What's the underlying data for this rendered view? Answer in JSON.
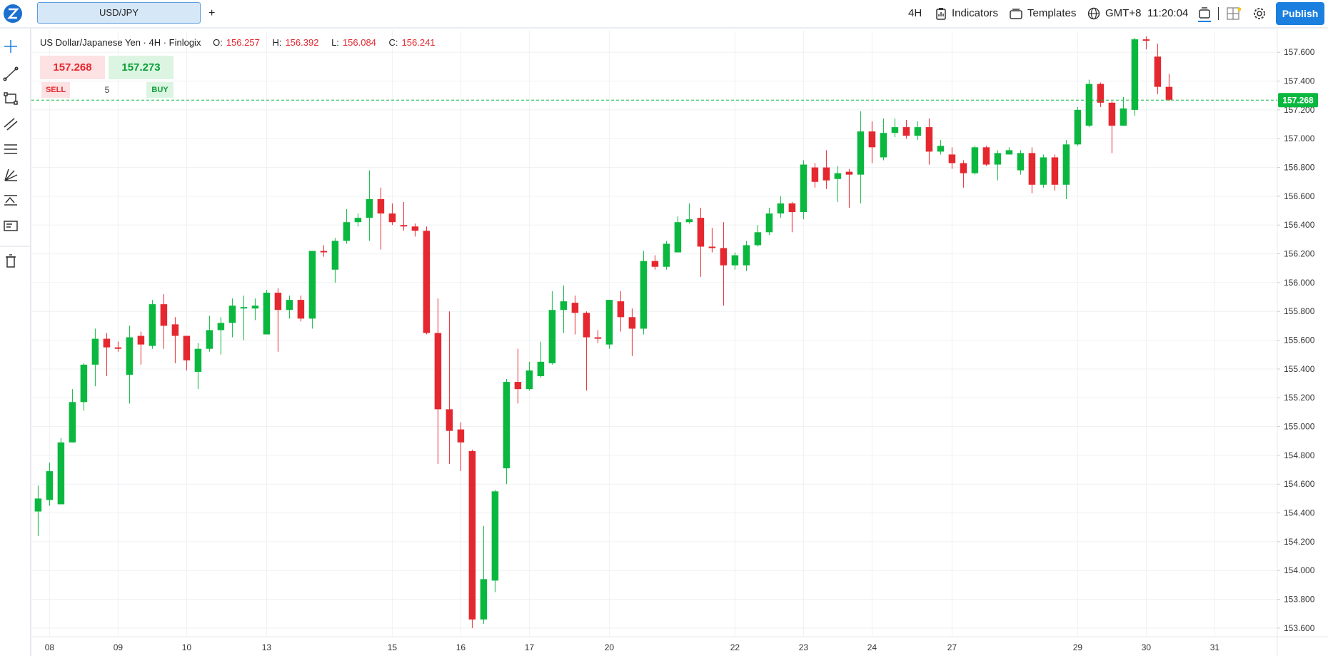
{
  "toolbar": {
    "tab": "USD/JPY",
    "add": "+",
    "interval": "4H",
    "indicators": "Indicators",
    "templates": "Templates",
    "timezone": "GMT+8",
    "clock": "11:20:04",
    "publish": "Publish"
  },
  "legend": {
    "name": "US Dollar/Japanese Yen · 4H · Finlogix",
    "o_label": "O:",
    "o": 156.257,
    "h_label": "H:",
    "h": 156.392,
    "l_label": "L:",
    "l": 156.084,
    "c_label": "C:",
    "c": 156.241
  },
  "trade": {
    "sell_price": 157.268,
    "buy_price": 157.273,
    "sell": "SELL",
    "quantity": 5,
    "buy": "BUY"
  },
  "chart_data": {
    "type": "candlestick",
    "categories": [
      null,
      "08",
      null,
      null,
      null,
      null,
      null,
      "09",
      null,
      null,
      null,
      null,
      null,
      "10",
      null,
      null,
      null,
      null,
      null,
      null,
      "13",
      null,
      null,
      null,
      null,
      null,
      null,
      null,
      null,
      null,
      null,
      "15",
      null,
      null,
      null,
      null,
      null,
      "16",
      null,
      null,
      null,
      null,
      null,
      "17",
      null,
      null,
      null,
      null,
      null,
      null,
      "20",
      null,
      null,
      null,
      null,
      null,
      null,
      null,
      null,
      null,
      null,
      "22",
      null,
      null,
      null,
      null,
      null,
      "23",
      null,
      null,
      null,
      null,
      null,
      "24",
      null,
      null,
      null,
      null,
      null,
      null,
      "27",
      null,
      null,
      null,
      null,
      null,
      null,
      null,
      null,
      null,
      null,
      "29",
      null,
      null,
      null,
      null,
      null,
      "30",
      null,
      null,
      null,
      null,
      null,
      "31"
    ],
    "open": [
      154.41,
      154.49,
      154.46,
      154.89,
      155.17,
      155.43,
      155.61,
      155.55,
      155.36,
      155.63,
      155.56,
      155.85,
      155.71,
      155.63,
      155.38,
      155.54,
      155.67,
      155.72,
      155.82,
      155.82,
      155.64,
      155.93,
      155.81,
      155.88,
      155.75,
      156.22,
      156.09,
      156.29,
      156.42,
      156.45,
      156.58,
      156.48,
      156.4,
      156.39,
      156.36,
      155.65,
      155.12,
      154.98,
      154.83,
      153.66,
      153.93,
      154.71,
      155.31,
      155.26,
      155.35,
      155.44,
      155.81,
      155.86,
      155.79,
      155.62,
      155.57,
      155.87,
      155.76,
      155.68,
      156.15,
      156.11,
      156.21,
      156.42,
      156.45,
      156.25,
      156.24,
      156.12,
      156.12,
      156.26,
      156.35,
      156.48,
      156.55,
      156.49,
      156.8,
      156.8,
      156.72,
      156.77,
      156.75,
      157.05,
      156.87,
      157.04,
      157.08,
      157.02,
      157.08,
      156.91,
      156.89,
      156.83,
      156.76,
      156.94,
      156.82,
      156.89,
      156.78,
      156.9,
      156.68,
      156.87,
      156.68,
      156.96,
      157.09,
      157.38,
      157.25,
      157.09,
      157.2,
      157.69,
      157.57,
      157.36,
      null,
      null,
      null,
      null
    ],
    "high": [
      154.59,
      154.75,
      154.92,
      155.26,
      155.44,
      155.68,
      155.65,
      155.59,
      155.7,
      155.66,
      155.88,
      155.92,
      155.76,
      155.63,
      155.58,
      155.77,
      155.76,
      155.89,
      155.91,
      155.89,
      155.95,
      155.96,
      155.91,
      155.91,
      156.22,
      156.26,
      156.31,
      156.51,
      156.48,
      156.78,
      156.66,
      156.55,
      156.56,
      156.41,
      156.39,
      155.89,
      155.8,
      155.03,
      154.84,
      154.31,
      154.56,
      155.33,
      155.54,
      155.45,
      155.59,
      155.94,
      155.98,
      155.91,
      155.8,
      155.67,
      155.88,
      155.94,
      155.82,
      156.22,
      156.19,
      156.29,
      156.46,
      156.55,
      156.52,
      156.38,
      156.42,
      156.21,
      156.29,
      156.4,
      156.52,
      156.6,
      156.56,
      156.85,
      156.83,
      156.92,
      156.81,
      156.79,
      157.19,
      157.12,
      157.14,
      157.14,
      157.13,
      157.12,
      157.14,
      156.99,
      156.94,
      156.85,
      156.95,
      156.95,
      156.92,
      156.94,
      156.92,
      156.94,
      156.89,
      156.89,
      156.99,
      157.22,
      157.41,
      157.39,
      157.26,
      157.29,
      157.7,
      157.71,
      157.66,
      157.45,
      null,
      null,
      null,
      null
    ],
    "low": [
      154.24,
      154.45,
      154.46,
      154.89,
      155.11,
      155.28,
      155.35,
      155.52,
      155.16,
      155.43,
      155.54,
      155.54,
      155.44,
      155.39,
      155.26,
      155.52,
      155.5,
      155.62,
      155.6,
      155.74,
      155.64,
      155.52,
      155.75,
      155.73,
      155.68,
      156.18,
      156.0,
      156.27,
      156.39,
      156.29,
      156.23,
      156.4,
      156.36,
      156.32,
      155.64,
      154.74,
      154.74,
      154.69,
      153.6,
      153.63,
      153.85,
      154.6,
      155.16,
      155.25,
      155.34,
      155.43,
      155.65,
      155.64,
      155.25,
      155.58,
      155.54,
      155.66,
      155.49,
      155.64,
      156.09,
      156.09,
      156.21,
      156.41,
      156.04,
      156.21,
      155.84,
      156.09,
      156.08,
      156.25,
      156.33,
      156.45,
      156.35,
      156.44,
      156.66,
      156.65,
      156.56,
      156.52,
      156.55,
      156.83,
      156.85,
      157.01,
      157.0,
      156.99,
      156.82,
      156.89,
      156.79,
      156.66,
      156.75,
      156.81,
      156.71,
      156.89,
      156.75,
      156.62,
      156.66,
      156.64,
      156.58,
      156.95,
      157.08,
      157.22,
      156.9,
      157.09,
      157.16,
      157.62,
      157.31,
      157.26,
      null,
      null,
      null,
      null
    ],
    "close": [
      154.5,
      154.69,
      154.89,
      155.17,
      155.43,
      155.61,
      155.55,
      155.54,
      155.62,
      155.57,
      155.85,
      155.7,
      155.63,
      155.46,
      155.54,
      155.67,
      155.72,
      155.84,
      155.83,
      155.84,
      155.93,
      155.81,
      155.88,
      155.75,
      156.22,
      156.21,
      156.29,
      156.42,
      156.45,
      156.58,
      156.48,
      156.42,
      156.39,
      156.36,
      155.65,
      155.12,
      154.97,
      154.89,
      153.66,
      153.94,
      154.55,
      155.31,
      155.26,
      155.39,
      155.45,
      155.81,
      155.87,
      155.79,
      155.62,
      155.61,
      155.88,
      155.76,
      155.68,
      156.15,
      156.11,
      156.27,
      156.42,
      156.44,
      156.25,
      156.24,
      156.12,
      156.19,
      156.26,
      156.35,
      156.48,
      156.55,
      156.49,
      156.82,
      156.7,
      156.71,
      156.76,
      156.75,
      157.05,
      156.94,
      157.04,
      157.08,
      157.02,
      157.08,
      156.91,
      156.95,
      156.83,
      156.76,
      156.94,
      156.82,
      156.9,
      156.92,
      156.9,
      156.68,
      156.87,
      156.68,
      156.96,
      157.2,
      157.38,
      157.25,
      157.09,
      157.21,
      157.69,
      157.68,
      157.36,
      157.27,
      null,
      null,
      null,
      null
    ],
    "up_color": "#0bb83f",
    "down_color": "#e5282f",
    "last_price": 157.268,
    "last_price_color": "#0bb83f",
    "ylim": [
      153.54,
      157.75
    ],
    "yticks": [
      {
        "value": 153.6,
        "label": "153.600"
      },
      {
        "value": 153.8,
        "label": "153.800"
      },
      {
        "value": 154.0,
        "label": "154.000"
      },
      {
        "value": 154.2,
        "label": "154.200"
      },
      {
        "value": 154.4,
        "label": "154.400"
      },
      {
        "value": 154.6,
        "label": "154.600"
      },
      {
        "value": 154.8,
        "label": "154.800"
      },
      {
        "value": 155.0,
        "label": "155.000"
      },
      {
        "value": 155.2,
        "label": "155.200"
      },
      {
        "value": 155.4,
        "label": "155.400"
      },
      {
        "value": 155.6,
        "label": "155.600"
      },
      {
        "value": 155.8,
        "label": "155.800"
      },
      {
        "value": 156.0,
        "label": "156.000"
      },
      {
        "value": 156.2,
        "label": "156.200"
      },
      {
        "value": 156.4,
        "label": "156.400"
      },
      {
        "value": 156.6,
        "label": "156.600"
      },
      {
        "value": 156.8,
        "label": "156.800"
      },
      {
        "value": 157.0,
        "label": "157.000"
      },
      {
        "value": 157.2,
        "label": "157.200"
      },
      {
        "value": 157.4,
        "label": "157.400"
      },
      {
        "value": 157.6,
        "label": "157.600"
      }
    ],
    "grid": true
  }
}
